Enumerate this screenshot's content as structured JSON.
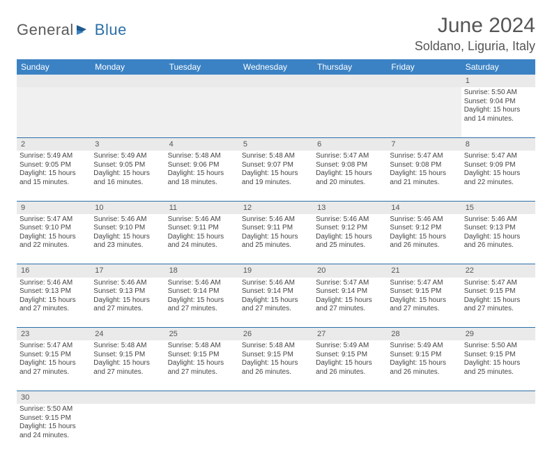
{
  "logo": {
    "text1": "General",
    "text2": "Blue"
  },
  "title": "June 2024",
  "location": "Soldano, Liguria, Italy",
  "headers": [
    "Sunday",
    "Monday",
    "Tuesday",
    "Wednesday",
    "Thursday",
    "Friday",
    "Saturday"
  ],
  "colors": {
    "header_bg": "#3b82c4",
    "header_text": "#ffffff",
    "daynum_bg": "#eaeaea",
    "border": "#2b6fa8",
    "logo_gray": "#5a5a5a",
    "logo_blue": "#2b6fa8"
  },
  "layout": {
    "cols": 7,
    "rows": 6,
    "cell_font_size": 10,
    "header_font_size": 12
  },
  "weeks": [
    [
      null,
      null,
      null,
      null,
      null,
      null,
      {
        "n": "1",
        "sr": "Sunrise: 5:50 AM",
        "ss": "Sunset: 9:04 PM",
        "d1": "Daylight: 15 hours",
        "d2": "and 14 minutes."
      }
    ],
    [
      {
        "n": "2",
        "sr": "Sunrise: 5:49 AM",
        "ss": "Sunset: 9:05 PM",
        "d1": "Daylight: 15 hours",
        "d2": "and 15 minutes."
      },
      {
        "n": "3",
        "sr": "Sunrise: 5:49 AM",
        "ss": "Sunset: 9:05 PM",
        "d1": "Daylight: 15 hours",
        "d2": "and 16 minutes."
      },
      {
        "n": "4",
        "sr": "Sunrise: 5:48 AM",
        "ss": "Sunset: 9:06 PM",
        "d1": "Daylight: 15 hours",
        "d2": "and 18 minutes."
      },
      {
        "n": "5",
        "sr": "Sunrise: 5:48 AM",
        "ss": "Sunset: 9:07 PM",
        "d1": "Daylight: 15 hours",
        "d2": "and 19 minutes."
      },
      {
        "n": "6",
        "sr": "Sunrise: 5:47 AM",
        "ss": "Sunset: 9:08 PM",
        "d1": "Daylight: 15 hours",
        "d2": "and 20 minutes."
      },
      {
        "n": "7",
        "sr": "Sunrise: 5:47 AM",
        "ss": "Sunset: 9:08 PM",
        "d1": "Daylight: 15 hours",
        "d2": "and 21 minutes."
      },
      {
        "n": "8",
        "sr": "Sunrise: 5:47 AM",
        "ss": "Sunset: 9:09 PM",
        "d1": "Daylight: 15 hours",
        "d2": "and 22 minutes."
      }
    ],
    [
      {
        "n": "9",
        "sr": "Sunrise: 5:47 AM",
        "ss": "Sunset: 9:10 PM",
        "d1": "Daylight: 15 hours",
        "d2": "and 22 minutes."
      },
      {
        "n": "10",
        "sr": "Sunrise: 5:46 AM",
        "ss": "Sunset: 9:10 PM",
        "d1": "Daylight: 15 hours",
        "d2": "and 23 minutes."
      },
      {
        "n": "11",
        "sr": "Sunrise: 5:46 AM",
        "ss": "Sunset: 9:11 PM",
        "d1": "Daylight: 15 hours",
        "d2": "and 24 minutes."
      },
      {
        "n": "12",
        "sr": "Sunrise: 5:46 AM",
        "ss": "Sunset: 9:11 PM",
        "d1": "Daylight: 15 hours",
        "d2": "and 25 minutes."
      },
      {
        "n": "13",
        "sr": "Sunrise: 5:46 AM",
        "ss": "Sunset: 9:12 PM",
        "d1": "Daylight: 15 hours",
        "d2": "and 25 minutes."
      },
      {
        "n": "14",
        "sr": "Sunrise: 5:46 AM",
        "ss": "Sunset: 9:12 PM",
        "d1": "Daylight: 15 hours",
        "d2": "and 26 minutes."
      },
      {
        "n": "15",
        "sr": "Sunrise: 5:46 AM",
        "ss": "Sunset: 9:13 PM",
        "d1": "Daylight: 15 hours",
        "d2": "and 26 minutes."
      }
    ],
    [
      {
        "n": "16",
        "sr": "Sunrise: 5:46 AM",
        "ss": "Sunset: 9:13 PM",
        "d1": "Daylight: 15 hours",
        "d2": "and 27 minutes."
      },
      {
        "n": "17",
        "sr": "Sunrise: 5:46 AM",
        "ss": "Sunset: 9:13 PM",
        "d1": "Daylight: 15 hours",
        "d2": "and 27 minutes."
      },
      {
        "n": "18",
        "sr": "Sunrise: 5:46 AM",
        "ss": "Sunset: 9:14 PM",
        "d1": "Daylight: 15 hours",
        "d2": "and 27 minutes."
      },
      {
        "n": "19",
        "sr": "Sunrise: 5:46 AM",
        "ss": "Sunset: 9:14 PM",
        "d1": "Daylight: 15 hours",
        "d2": "and 27 minutes."
      },
      {
        "n": "20",
        "sr": "Sunrise: 5:47 AM",
        "ss": "Sunset: 9:14 PM",
        "d1": "Daylight: 15 hours",
        "d2": "and 27 minutes."
      },
      {
        "n": "21",
        "sr": "Sunrise: 5:47 AM",
        "ss": "Sunset: 9:15 PM",
        "d1": "Daylight: 15 hours",
        "d2": "and 27 minutes."
      },
      {
        "n": "22",
        "sr": "Sunrise: 5:47 AM",
        "ss": "Sunset: 9:15 PM",
        "d1": "Daylight: 15 hours",
        "d2": "and 27 minutes."
      }
    ],
    [
      {
        "n": "23",
        "sr": "Sunrise: 5:47 AM",
        "ss": "Sunset: 9:15 PM",
        "d1": "Daylight: 15 hours",
        "d2": "and 27 minutes."
      },
      {
        "n": "24",
        "sr": "Sunrise: 5:48 AM",
        "ss": "Sunset: 9:15 PM",
        "d1": "Daylight: 15 hours",
        "d2": "and 27 minutes."
      },
      {
        "n": "25",
        "sr": "Sunrise: 5:48 AM",
        "ss": "Sunset: 9:15 PM",
        "d1": "Daylight: 15 hours",
        "d2": "and 27 minutes."
      },
      {
        "n": "26",
        "sr": "Sunrise: 5:48 AM",
        "ss": "Sunset: 9:15 PM",
        "d1": "Daylight: 15 hours",
        "d2": "and 26 minutes."
      },
      {
        "n": "27",
        "sr": "Sunrise: 5:49 AM",
        "ss": "Sunset: 9:15 PM",
        "d1": "Daylight: 15 hours",
        "d2": "and 26 minutes."
      },
      {
        "n": "28",
        "sr": "Sunrise: 5:49 AM",
        "ss": "Sunset: 9:15 PM",
        "d1": "Daylight: 15 hours",
        "d2": "and 26 minutes."
      },
      {
        "n": "29",
        "sr": "Sunrise: 5:50 AM",
        "ss": "Sunset: 9:15 PM",
        "d1": "Daylight: 15 hours",
        "d2": "and 25 minutes."
      }
    ],
    [
      {
        "n": "30",
        "sr": "Sunrise: 5:50 AM",
        "ss": "Sunset: 9:15 PM",
        "d1": "Daylight: 15 hours",
        "d2": "and 24 minutes."
      },
      null,
      null,
      null,
      null,
      null,
      null
    ]
  ]
}
